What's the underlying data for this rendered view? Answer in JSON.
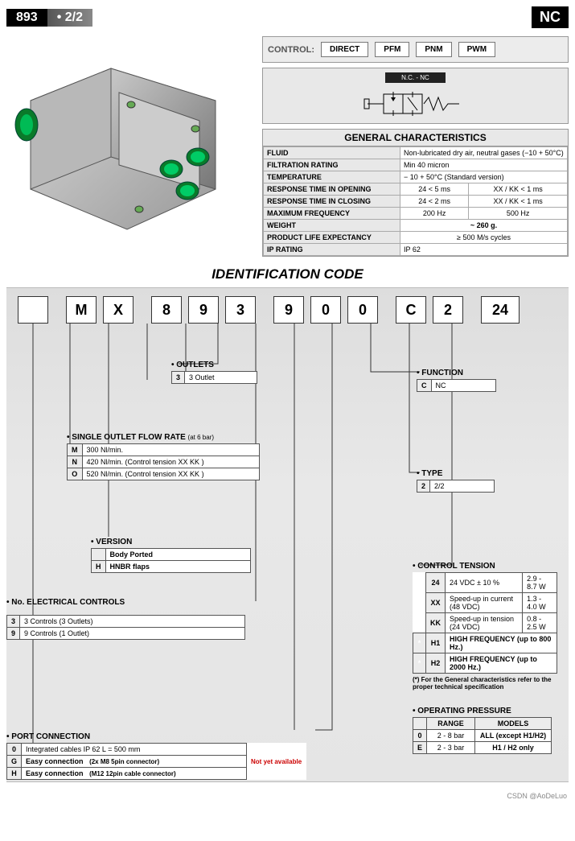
{
  "header": {
    "model": "893",
    "cfg": "2/2",
    "nc": "NC"
  },
  "control": {
    "label": "CONTROL:",
    "opts": [
      "DIRECT",
      "PFM",
      "PNM",
      "PWM"
    ]
  },
  "symbol": {
    "top": "N.C. - NC"
  },
  "gc": {
    "title": "GENERAL CHARACTERISTICS",
    "rows": [
      {
        "k": "FLUID",
        "v": [
          "Non-lubricated dry air, neutral gases (−10 + 50°C)"
        ]
      },
      {
        "k": "FILTRATION RATING",
        "v": [
          "Min 40 micron"
        ]
      },
      {
        "k": "TEMPERATURE",
        "v": [
          "− 10 + 50°C (Standard version)"
        ]
      },
      {
        "k": "RESPONSE TIME IN OPENING",
        "v": [
          "24 < 5 ms",
          "XX / KK < 1 ms"
        ]
      },
      {
        "k": "RESPONSE TIME IN CLOSING",
        "v": [
          "24 < 2 ms",
          "XX / KK < 1 ms"
        ]
      },
      {
        "k": "MAXIMUM FREQUENCY",
        "v": [
          "200 Hz",
          "500 Hz"
        ]
      },
      {
        "k": "WEIGHT",
        "v": [
          "~ 260 g."
        ]
      },
      {
        "k": "PRODUCT LIFE EXPECTANCY",
        "v": [
          "≥ 500  M/s cycles"
        ]
      },
      {
        "k": "IP RATING",
        "v": [
          "IP 62"
        ]
      }
    ]
  },
  "id": {
    "title": "IDENTIFICATION CODE",
    "codes": [
      "",
      "M",
      "X",
      "8",
      "9",
      "3",
      "9",
      "0",
      "0",
      "C",
      "2",
      "24"
    ]
  },
  "outlets": {
    "label": "OUTLETS",
    "rows": [
      [
        "3",
        "3 Outlet"
      ]
    ]
  },
  "function": {
    "label": "FUNCTION",
    "rows": [
      [
        "C",
        "NC"
      ]
    ]
  },
  "flow": {
    "label": "SINGLE OUTLET FLOW RATE",
    "note": "(at 6 bar)",
    "rows": [
      [
        "M",
        "300 Nl/min."
      ],
      [
        "N",
        "420 Nl/min. (Control tension XX KK )"
      ],
      [
        "O",
        "520 Nl/min. (Control tension XX KK )"
      ]
    ]
  },
  "type": {
    "label": "TYPE",
    "rows": [
      [
        "2",
        "2/2"
      ]
    ]
  },
  "version": {
    "label": "VERSION",
    "rows": [
      [
        "",
        "Body Ported"
      ],
      [
        "H",
        "HNBR flaps"
      ]
    ]
  },
  "tension": {
    "label": "CONTROL TENSION",
    "rows": [
      [
        "24",
        "24 VDC ± 10 %",
        "2.9 - 8.7 W"
      ],
      [
        "XX",
        "Speed-up in current (48 VDC)",
        "1.3 - 4.0 W"
      ],
      [
        "KK",
        "Speed-up in tension (24 VDC)",
        "0.8 - 2.5 W"
      ],
      [
        "H1",
        "HIGH FREQUENCY (up to 800 Hz.)",
        ""
      ],
      [
        "H2",
        "HIGH FREQUENCY (up to 2000 Hz.)",
        ""
      ]
    ],
    "star": "*",
    "footnote": "(*) For the General characteristics refer to the proper technical specification"
  },
  "ec": {
    "label": "No. ELECTRICAL CONTROLS",
    "rows": [
      [
        "3",
        "3 Controls   (3 Outlets)"
      ],
      [
        "9",
        "9 Controls   (1 Outlet)"
      ]
    ]
  },
  "op": {
    "label": "OPERATING PRESSURE",
    "h": [
      "",
      "RANGE",
      "MODELS"
    ],
    "rows": [
      [
        "0",
        "2 - 8   bar",
        "ALL (except H1/H2)"
      ],
      [
        "E",
        "2 - 3 bar",
        "H1 / H2 only"
      ]
    ]
  },
  "port": {
    "label": "PORT CONNECTION",
    "rows": [
      [
        "0",
        "Integrated cables  IP 62   L = 500 mm",
        ""
      ],
      [
        "G",
        "Easy connection    (2x M8 5pin connector)",
        "Not yet available"
      ],
      [
        "H",
        "Easy connection    (M12  12pin cable connector)",
        ""
      ]
    ]
  },
  "watermark": "CSDN @AoDeLuo"
}
